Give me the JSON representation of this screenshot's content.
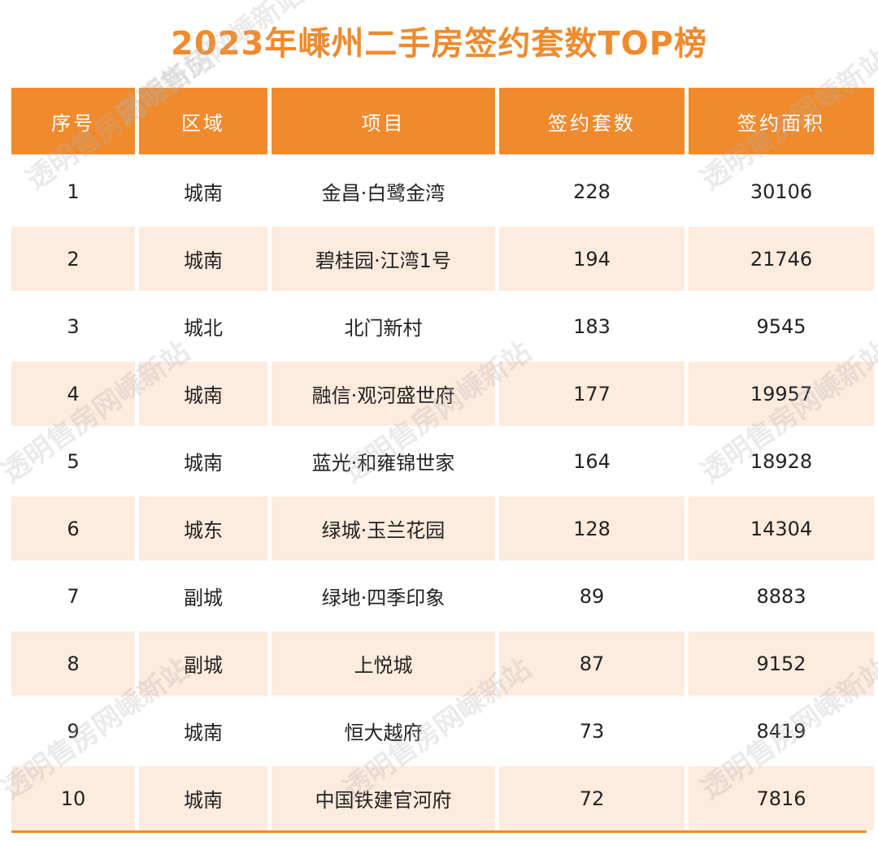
{
  "title": "2023年嵊州二手房签约套数TOP榜",
  "colors": {
    "title": "#F08A2C",
    "header_bg": "#F08A2C",
    "row_alt_bg": "#FDEBDD",
    "row_bg": "#FFFFFF"
  },
  "watermark": "透明售房网嵊新站",
  "chart_data": {
    "type": "table",
    "title": "2023年嵊州二手房签约套数TOP榜",
    "columns": [
      "序号",
      "区域",
      "项目",
      "签约套数",
      "签约面积"
    ],
    "rows": [
      [
        "1",
        "城南",
        "金昌·白鹭金湾",
        "228",
        "30106"
      ],
      [
        "2",
        "城南",
        "碧桂园·江湾1号",
        "194",
        "21746"
      ],
      [
        "3",
        "城北",
        "北门新村",
        "183",
        "9545"
      ],
      [
        "4",
        "城南",
        "融信·观河盛世府",
        "177",
        "19957"
      ],
      [
        "5",
        "城南",
        "蓝光·和雍锦世家",
        "164",
        "18928"
      ],
      [
        "6",
        "城东",
        "绿城·玉兰花园",
        "128",
        "14304"
      ],
      [
        "7",
        "副城",
        "绿地·四季印象",
        "89",
        "8883"
      ],
      [
        "8",
        "副城",
        "上悦城",
        "87",
        "9152"
      ],
      [
        "9",
        "城南",
        "恒大越府",
        "73",
        "8419"
      ],
      [
        "10",
        "城南",
        "中国铁建官河府",
        "72",
        "7816"
      ]
    ]
  }
}
